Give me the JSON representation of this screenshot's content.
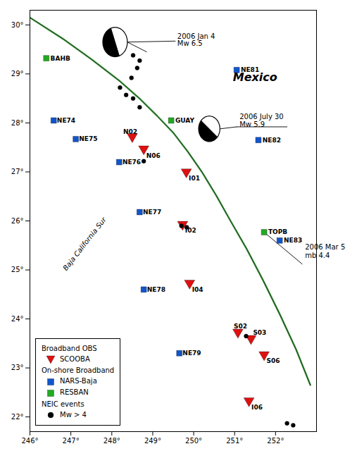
{
  "chart_data": {
    "type": "scatter",
    "xlim": [
      246,
      253
    ],
    "ylim": [
      21.7,
      30.3
    ],
    "xticks": [
      {
        "value": 246,
        "label": "246°"
      },
      {
        "value": 247,
        "label": "247°"
      },
      {
        "value": 248,
        "label": "248°"
      },
      {
        "value": 249,
        "label": "249°"
      },
      {
        "value": 250,
        "label": "250°"
      },
      {
        "value": 251,
        "label": "251°"
      },
      {
        "value": 252,
        "label": "252°"
      }
    ],
    "yticks": [
      {
        "value": 22,
        "label": "22°"
      },
      {
        "value": 23,
        "label": "23°"
      },
      {
        "value": 24,
        "label": "24°"
      },
      {
        "value": 25,
        "label": "25°"
      },
      {
        "value": 26,
        "label": "26°"
      },
      {
        "value": 27,
        "label": "27°"
      },
      {
        "value": 28,
        "label": "28°"
      },
      {
        "value": 29,
        "label": "29°"
      },
      {
        "value": 30,
        "label": "30°"
      }
    ],
    "grid": false,
    "legend": "lower left",
    "series": [
      {
        "name": "SCOOBA",
        "group": "Broadband OBS",
        "color": "#dd1111",
        "marker": "triangle_down",
        "x": [
          248.5,
          248.78,
          249.82,
          249.73,
          249.9,
          251.08,
          251.4,
          251.72,
          251.35
        ],
        "y": [
          27.72,
          27.47,
          27.0,
          25.93,
          24.73,
          23.73,
          23.6,
          23.27,
          22.33
        ],
        "labels": [
          "N02",
          "N06",
          "I01",
          "I02",
          "I04",
          "S02",
          "S03",
          "S06",
          "I06"
        ],
        "label_dx": [
          -0.22,
          0.06,
          0.06,
          0.06,
          0.06,
          -0.1,
          0.05,
          0.06,
          0.06
        ],
        "label_dy": [
          0.1,
          -0.14,
          -0.13,
          -0.13,
          -0.13,
          0.12,
          0.12,
          -0.13,
          -0.13
        ]
      },
      {
        "name": "NARS-Baja",
        "group": "On-shore Broadband",
        "color": "#1155cc",
        "marker": "square",
        "x": [
          246.58,
          247.12,
          248.18,
          248.68,
          248.78,
          249.65,
          251.05,
          251.58,
          252.1
        ],
        "y": [
          28.05,
          27.67,
          27.2,
          26.18,
          24.6,
          23.3,
          29.08,
          27.65,
          25.6
        ],
        "labels": [
          "NE74",
          "NE75",
          "NE76",
          "NE77",
          "NE78",
          "NE79",
          "NE81",
          "NE82",
          "NE83"
        ],
        "label_dx": [
          0.08,
          0.08,
          0.08,
          0.08,
          0.08,
          0.08,
          0.1,
          0.1,
          0.1
        ],
        "label_dy": [
          0.0,
          0.0,
          0.0,
          0.0,
          0.0,
          0.0,
          0.0,
          0.0,
          0.0
        ]
      },
      {
        "name": "RESBAN",
        "group": "On-shore Broadband",
        "color": "#22aa22",
        "marker": "square",
        "x": [
          246.4,
          249.45,
          251.72
        ],
        "y": [
          29.32,
          28.05,
          25.77
        ],
        "labels": [
          "BAHB",
          "GUAY",
          "TOPB"
        ],
        "label_dx": [
          0.1,
          0.1,
          0.1
        ],
        "label_dy": [
          0.0,
          0.0,
          0.0
        ]
      },
      {
        "name": "Mw > 4",
        "group": "NEIC events",
        "color": "black",
        "marker": "circle",
        "x": [
          248.3,
          248.52,
          248.68,
          248.62,
          248.48,
          248.2,
          248.35,
          248.52,
          248.68,
          248.78,
          249.7,
          249.83,
          251.28,
          252.28,
          252.43
        ],
        "y": [
          29.57,
          29.38,
          29.27,
          29.12,
          28.92,
          28.72,
          28.57,
          28.5,
          28.32,
          27.22,
          25.9,
          25.87,
          23.65,
          21.87,
          21.83
        ]
      }
    ],
    "fault_line": {
      "color": "#228822",
      "x": [
        246.0,
        246.8,
        247.5,
        248.2,
        248.7,
        249.1,
        249.5,
        249.85,
        250.2,
        250.55,
        250.9,
        251.3,
        251.7,
        252.1,
        252.5,
        252.85
      ],
      "y": [
        30.15,
        29.72,
        29.3,
        28.85,
        28.48,
        28.15,
        27.8,
        27.42,
        27.0,
        26.52,
        26.0,
        25.42,
        24.78,
        24.1,
        23.38,
        22.65
      ]
    },
    "pointer_lines": [
      {
        "x": [
          248.38,
          248.85
        ],
        "y": [
          29.65,
          29.45
        ]
      },
      {
        "x": [
          248.38,
          249.55
        ],
        "y": [
          29.65,
          29.67
        ]
      },
      {
        "x": [
          250.65,
          251.05
        ],
        "y": [
          27.88,
          27.92
        ]
      },
      {
        "x": [
          251.05,
          252.28
        ],
        "y": [
          27.92,
          27.92
        ]
      },
      {
        "x": [
          251.72,
          252.65
        ],
        "y": [
          25.77,
          25.12
        ]
      }
    ],
    "beach_balls": [
      {
        "cx": 248.08,
        "cy": 29.65,
        "radius": 0.3
      },
      {
        "cx": 250.38,
        "cy": 27.88,
        "radius": 0.26
      }
    ],
    "event_labels": [
      {
        "text": "2006 Jan 4",
        "x": 249.6,
        "y": 29.72
      },
      {
        "text": "Mw 6.5",
        "x": 249.6,
        "y": 29.57
      },
      {
        "text": "2006 July 30",
        "x": 251.12,
        "y": 28.08
      },
      {
        "text": "Mw 5.9",
        "x": 251.12,
        "y": 27.92
      },
      {
        "text": "2006 Mar 5",
        "x": 252.72,
        "y": 25.42
      },
      {
        "text": "mb 4.4",
        "x": 252.72,
        "y": 25.25
      }
    ],
    "place_labels": [
      {
        "text": "Mexico",
        "x": 251.5,
        "y": 28.85
      },
      {
        "text": "Baja California Sur",
        "x": 247.38,
        "y": 25.5
      }
    ]
  }
}
